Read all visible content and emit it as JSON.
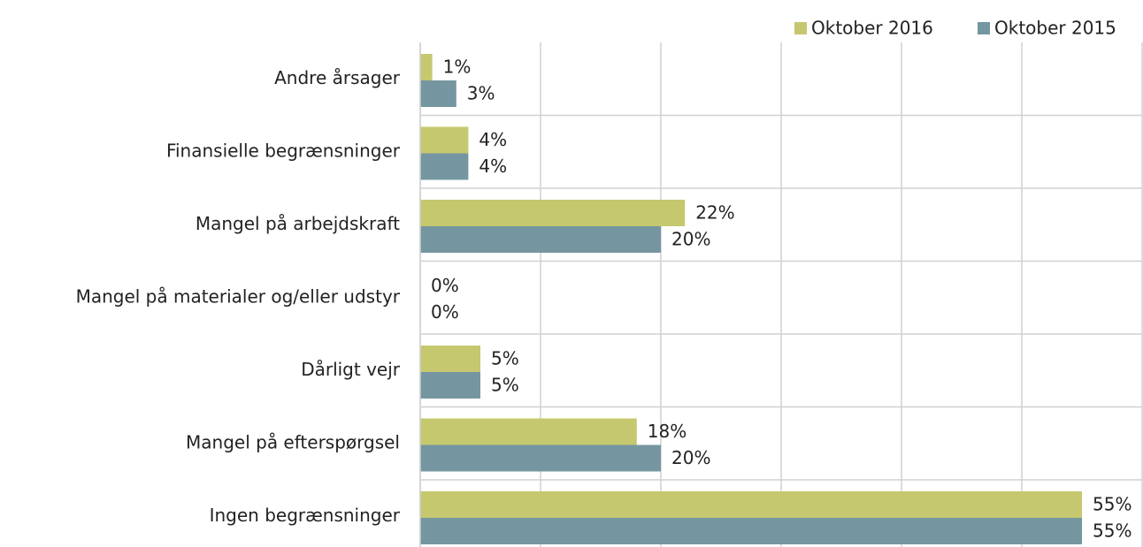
{
  "chart_data": {
    "type": "bar",
    "orientation": "horizontal",
    "categories": [
      "Andre årsager",
      "Finansielle begrænsninger",
      "Mangel på arbejdskraft",
      "Mangel på materialer og/eller udstyr",
      "Dårligt vejr",
      "Mangel på efterspørgsel",
      "Ingen begrænsninger"
    ],
    "series": [
      {
        "name": "Oktober 2016",
        "color": "#c5c86e",
        "values": [
          1,
          4,
          22,
          0,
          5,
          18,
          55
        ],
        "value_labels": [
          "1%",
          "4%",
          "22%",
          "0%",
          "5%",
          "18%",
          "55%"
        ]
      },
      {
        "name": "Oktober 2015",
        "color": "#7596a1",
        "values": [
          3,
          4,
          20,
          0,
          5,
          20,
          55
        ],
        "value_labels": [
          "3%",
          "4%",
          "20%",
          "0%",
          "5%",
          "20%",
          "55%"
        ]
      }
    ],
    "xlim": [
      0,
      60
    ],
    "xticks": [
      0,
      10,
      20,
      30,
      40,
      50,
      60
    ],
    "grid": true,
    "legend": "top-right"
  }
}
